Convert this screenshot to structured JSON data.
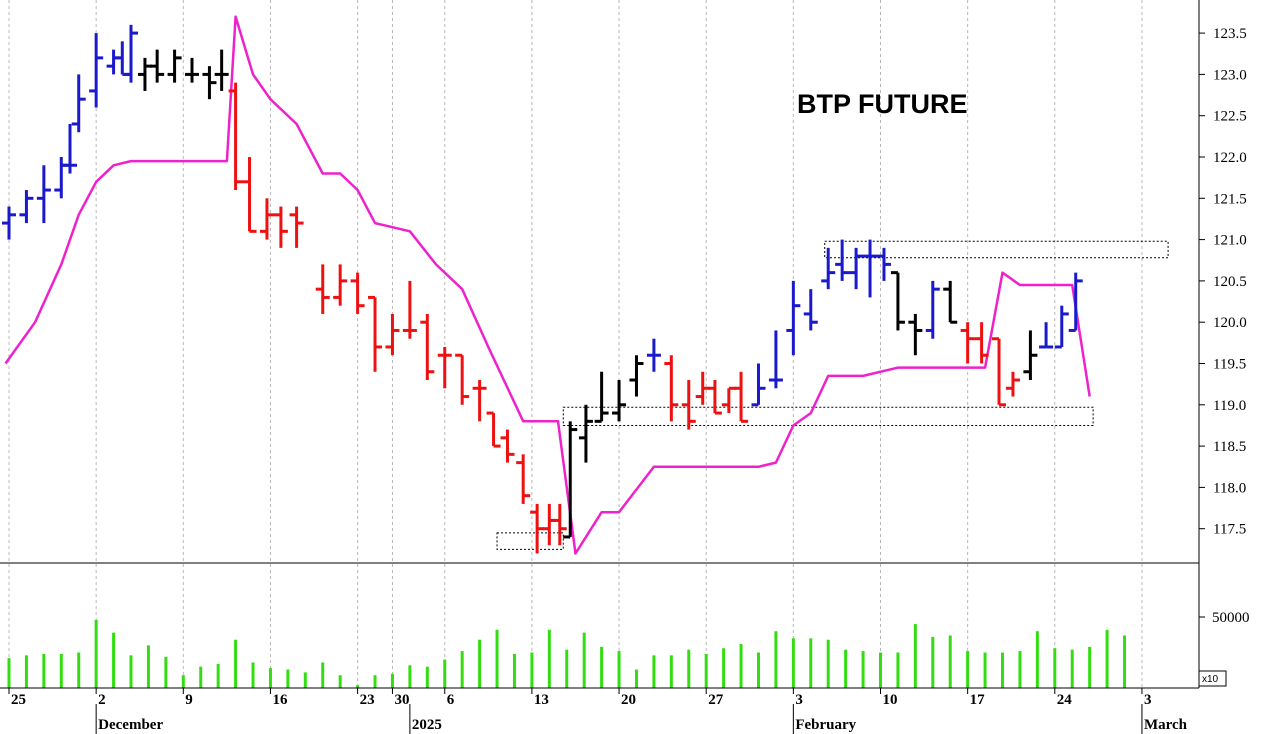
{
  "chart_data": {
    "type": "ohlc",
    "title": "BTP FUTURE",
    "y_axis": {
      "side": "right",
      "ylim": [
        117.0,
        123.7
      ],
      "ticks": [
        "117.5",
        "118.0",
        "118.5",
        "119.0",
        "119.5",
        "120.0",
        "120.5",
        "121.0",
        "121.5",
        "122.0",
        "122.5",
        "123.0",
        "123.5"
      ]
    },
    "volume_axis": {
      "ylim": [
        0,
        62000
      ],
      "tick": "50000",
      "multiplier": "x10"
    },
    "x_axis": {
      "date_labels": [
        {
          "label": "25",
          "day": 0
        },
        {
          "label": "2",
          "day": 5
        },
        {
          "label": "9",
          "day": 10
        },
        {
          "label": "16",
          "day": 15
        },
        {
          "label": "23",
          "day": 20
        },
        {
          "label": "30",
          "day": 22
        },
        {
          "label": "6",
          "day": 25
        },
        {
          "label": "13",
          "day": 30
        },
        {
          "label": "20",
          "day": 35
        },
        {
          "label": "27",
          "day": 40
        },
        {
          "label": "3",
          "day": 45
        },
        {
          "label": "10",
          "day": 50
        },
        {
          "label": "17",
          "day": 55
        },
        {
          "label": "24",
          "day": 60
        },
        {
          "label": "3",
          "day": 65
        }
      ],
      "month_labels": [
        {
          "label": "December",
          "day": 5
        },
        {
          "label": "2025",
          "day": 23
        },
        {
          "label": "February",
          "day": 45
        },
        {
          "label": "March",
          "day": 65
        }
      ]
    },
    "colors": {
      "up": "#1a1acc",
      "down": "#ee1111",
      "neutral": "#000000",
      "supertrend": "#ee22cc",
      "volume": "#33dd11"
    },
    "bars": [
      {
        "x": 0,
        "o": 121.2,
        "h": 121.4,
        "l": 121.0,
        "c": 121.3,
        "color": "up"
      },
      {
        "x": 1,
        "o": 121.3,
        "h": 121.6,
        "l": 121.2,
        "c": 121.5,
        "color": "up"
      },
      {
        "x": 2,
        "o": 121.5,
        "h": 121.9,
        "l": 121.2,
        "c": 121.6,
        "color": "up"
      },
      {
        "x": 3,
        "o": 121.6,
        "h": 122.0,
        "l": 121.5,
        "c": 121.9,
        "color": "up"
      },
      {
        "x": 3.5,
        "o": 121.9,
        "h": 122.4,
        "l": 121.8,
        "c": 121.9,
        "color": "up"
      },
      {
        "x": 4,
        "o": 122.4,
        "h": 123.0,
        "l": 122.3,
        "c": 122.7,
        "color": "up"
      },
      {
        "x": 5,
        "o": 122.8,
        "h": 123.5,
        "l": 122.6,
        "c": 123.2,
        "color": "up"
      },
      {
        "x": 6,
        "o": 123.1,
        "h": 123.3,
        "l": 123.0,
        "c": 123.2,
        "color": "up"
      },
      {
        "x": 6.5,
        "o": 123.2,
        "h": 123.4,
        "l": 123.0,
        "c": 123.0,
        "color": "up"
      },
      {
        "x": 7,
        "o": 123.0,
        "h": 123.6,
        "l": 122.9,
        "c": 123.5,
        "color": "up"
      },
      {
        "x": 7.8,
        "o": 123.0,
        "h": 123.2,
        "l": 122.8,
        "c": 123.1,
        "color": "neutral"
      },
      {
        "x": 8.5,
        "o": 123.1,
        "h": 123.3,
        "l": 122.9,
        "c": 123.0,
        "color": "neutral"
      },
      {
        "x": 9.5,
        "o": 123.0,
        "h": 123.3,
        "l": 122.9,
        "c": 123.2,
        "color": "neutral"
      },
      {
        "x": 10.5,
        "o": 123.0,
        "h": 123.2,
        "l": 122.9,
        "c": 123.0,
        "color": "neutral"
      },
      {
        "x": 11.5,
        "o": 123.0,
        "h": 123.1,
        "l": 122.7,
        "c": 122.9,
        "color": "neutral"
      },
      {
        "x": 12.2,
        "o": 123.0,
        "h": 123.3,
        "l": 122.8,
        "c": 123.0,
        "color": "neutral"
      },
      {
        "x": 13,
        "o": 122.8,
        "h": 122.9,
        "l": 121.6,
        "c": 121.7,
        "color": "down"
      },
      {
        "x": 13.8,
        "o": 121.7,
        "h": 122.0,
        "l": 121.1,
        "c": 121.1,
        "color": "down"
      },
      {
        "x": 14.8,
        "o": 121.1,
        "h": 121.5,
        "l": 121.0,
        "c": 121.3,
        "color": "down"
      },
      {
        "x": 15.6,
        "o": 121.3,
        "h": 121.4,
        "l": 120.9,
        "c": 121.1,
        "color": "down"
      },
      {
        "x": 16.5,
        "o": 121.3,
        "h": 121.4,
        "l": 120.9,
        "c": 121.2,
        "color": "down"
      },
      {
        "x": 18,
        "o": 120.4,
        "h": 120.7,
        "l": 120.1,
        "c": 120.3,
        "color": "down"
      },
      {
        "x": 19,
        "o": 120.3,
        "h": 120.7,
        "l": 120.2,
        "c": 120.5,
        "color": "down"
      },
      {
        "x": 20,
        "o": 120.5,
        "h": 120.6,
        "l": 120.1,
        "c": 120.2,
        "color": "down"
      },
      {
        "x": 21,
        "o": 120.3,
        "h": 120.3,
        "l": 119.4,
        "c": 119.7,
        "color": "down"
      },
      {
        "x": 22,
        "o": 119.7,
        "h": 120.1,
        "l": 119.6,
        "c": 119.9,
        "color": "down"
      },
      {
        "x": 23,
        "o": 119.9,
        "h": 120.5,
        "l": 119.8,
        "c": 119.9,
        "color": "down"
      },
      {
        "x": 24,
        "o": 120.0,
        "h": 120.1,
        "l": 119.3,
        "c": 119.4,
        "color": "down"
      },
      {
        "x": 25,
        "o": 119.6,
        "h": 119.7,
        "l": 119.2,
        "c": 119.6,
        "color": "down"
      },
      {
        "x": 26,
        "o": 119.6,
        "h": 119.6,
        "l": 119.0,
        "c": 119.1,
        "color": "down"
      },
      {
        "x": 27,
        "o": 119.2,
        "h": 119.3,
        "l": 118.8,
        "c": 119.2,
        "color": "down"
      },
      {
        "x": 27.8,
        "o": 118.9,
        "h": 118.9,
        "l": 118.5,
        "c": 118.5,
        "color": "down"
      },
      {
        "x": 28.6,
        "o": 118.6,
        "h": 118.7,
        "l": 118.3,
        "c": 118.4,
        "color": "down"
      },
      {
        "x": 29.5,
        "o": 118.3,
        "h": 118.4,
        "l": 117.8,
        "c": 117.9,
        "color": "down"
      },
      {
        "x": 30.3,
        "o": 117.7,
        "h": 117.8,
        "l": 117.2,
        "c": 117.5,
        "color": "down"
      },
      {
        "x": 31,
        "o": 117.5,
        "h": 117.8,
        "l": 117.3,
        "c": 117.6,
        "color": "down"
      },
      {
        "x": 31.6,
        "o": 117.6,
        "h": 117.8,
        "l": 117.3,
        "c": 117.5,
        "color": "down"
      },
      {
        "x": 32.2,
        "o": 117.4,
        "h": 118.8,
        "l": 117.4,
        "c": 118.7,
        "color": "neutral"
      },
      {
        "x": 33.1,
        "o": 118.6,
        "h": 119.0,
        "l": 118.3,
        "c": 118.8,
        "color": "neutral"
      },
      {
        "x": 34,
        "o": 118.8,
        "h": 119.4,
        "l": 118.8,
        "c": 118.9,
        "color": "neutral"
      },
      {
        "x": 35,
        "o": 118.9,
        "h": 119.3,
        "l": 118.8,
        "c": 119.0,
        "color": "neutral"
      },
      {
        "x": 36,
        "o": 119.3,
        "h": 119.6,
        "l": 119.1,
        "c": 119.5,
        "color": "neutral"
      },
      {
        "x": 37,
        "o": 119.6,
        "h": 119.8,
        "l": 119.4,
        "c": 119.6,
        "color": "up"
      },
      {
        "x": 38,
        "o": 119.5,
        "h": 119.6,
        "l": 118.8,
        "c": 119.0,
        "color": "down"
      },
      {
        "x": 39,
        "o": 119.0,
        "h": 119.3,
        "l": 118.7,
        "c": 118.8,
        "color": "down"
      },
      {
        "x": 39.8,
        "o": 119.1,
        "h": 119.4,
        "l": 119.0,
        "c": 119.2,
        "color": "down"
      },
      {
        "x": 40.5,
        "o": 119.2,
        "h": 119.3,
        "l": 118.9,
        "c": 118.9,
        "color": "down"
      },
      {
        "x": 41.3,
        "o": 119.0,
        "h": 119.2,
        "l": 118.9,
        "c": 119.2,
        "color": "down"
      },
      {
        "x": 42,
        "o": 119.2,
        "h": 119.4,
        "l": 118.8,
        "c": 118.8,
        "color": "down"
      },
      {
        "x": 43,
        "o": 119.0,
        "h": 119.5,
        "l": 119.0,
        "c": 119.2,
        "color": "up"
      },
      {
        "x": 44,
        "o": 119.3,
        "h": 119.9,
        "l": 119.2,
        "c": 119.3,
        "color": "up"
      },
      {
        "x": 45,
        "o": 119.9,
        "h": 120.5,
        "l": 119.6,
        "c": 120.2,
        "color": "up"
      },
      {
        "x": 46,
        "o": 120.1,
        "h": 120.4,
        "l": 119.9,
        "c": 120.0,
        "color": "up"
      },
      {
        "x": 47,
        "o": 120.5,
        "h": 120.9,
        "l": 120.4,
        "c": 120.6,
        "color": "up"
      },
      {
        "x": 47.8,
        "o": 120.7,
        "h": 121.0,
        "l": 120.5,
        "c": 120.6,
        "color": "up"
      },
      {
        "x": 48.6,
        "o": 120.6,
        "h": 120.9,
        "l": 120.4,
        "c": 120.8,
        "color": "up"
      },
      {
        "x": 49.4,
        "o": 120.8,
        "h": 121.0,
        "l": 120.3,
        "c": 120.8,
        "color": "up"
      },
      {
        "x": 50.2,
        "o": 120.8,
        "h": 120.9,
        "l": 120.5,
        "c": 120.7,
        "color": "up"
      },
      {
        "x": 51,
        "o": 120.6,
        "h": 120.6,
        "l": 119.9,
        "c": 120.0,
        "color": "neutral"
      },
      {
        "x": 52,
        "o": 120.0,
        "h": 120.1,
        "l": 119.6,
        "c": 119.9,
        "color": "neutral"
      },
      {
        "x": 53,
        "o": 119.9,
        "h": 120.5,
        "l": 119.8,
        "c": 120.4,
        "color": "up"
      },
      {
        "x": 54,
        "o": 120.4,
        "h": 120.5,
        "l": 120.0,
        "c": 120.0,
        "color": "neutral"
      },
      {
        "x": 55,
        "o": 119.9,
        "h": 120.0,
        "l": 119.5,
        "c": 119.8,
        "color": "down"
      },
      {
        "x": 55.8,
        "o": 119.8,
        "h": 120.0,
        "l": 119.5,
        "c": 119.6,
        "color": "down"
      },
      {
        "x": 56.8,
        "o": 119.8,
        "h": 119.8,
        "l": 119.0,
        "c": 119.0,
        "color": "down"
      },
      {
        "x": 57.6,
        "o": 119.2,
        "h": 119.4,
        "l": 119.1,
        "c": 119.3,
        "color": "down"
      },
      {
        "x": 58.6,
        "o": 119.4,
        "h": 119.9,
        "l": 119.3,
        "c": 119.6,
        "color": "neutral"
      },
      {
        "x": 59.5,
        "o": 119.7,
        "h": 120.0,
        "l": 119.7,
        "c": 119.7,
        "color": "up"
      },
      {
        "x": 60.4,
        "o": 119.7,
        "h": 120.2,
        "l": 119.7,
        "c": 120.1,
        "color": "up"
      },
      {
        "x": 61.2,
        "o": 119.9,
        "h": 120.6,
        "l": 119.9,
        "c": 120.5,
        "color": "up"
      }
    ],
    "supertrend": [
      {
        "x": -0.2,
        "y": 119.5
      },
      {
        "x": 1.5,
        "y": 120.0
      },
      {
        "x": 3,
        "y": 120.7
      },
      {
        "x": 4,
        "y": 121.3
      },
      {
        "x": 5,
        "y": 121.7
      },
      {
        "x": 6,
        "y": 121.9
      },
      {
        "x": 7,
        "y": 121.95
      },
      {
        "x": 9,
        "y": 121.95
      },
      {
        "x": 12.5,
        "y": 121.95
      },
      {
        "x": 13,
        "y": 123.7
      },
      {
        "x": 14,
        "y": 123.0
      },
      {
        "x": 15,
        "y": 122.7
      },
      {
        "x": 16.5,
        "y": 122.4
      },
      {
        "x": 18,
        "y": 121.8
      },
      {
        "x": 19,
        "y": 121.8
      },
      {
        "x": 20,
        "y": 121.6
      },
      {
        "x": 21,
        "y": 121.2
      },
      {
        "x": 22,
        "y": 121.15
      },
      {
        "x": 23,
        "y": 121.1
      },
      {
        "x": 24.5,
        "y": 120.7
      },
      {
        "x": 26,
        "y": 120.4
      },
      {
        "x": 27.5,
        "y": 119.7
      },
      {
        "x": 29.5,
        "y": 118.8
      },
      {
        "x": 31.5,
        "y": 118.8
      },
      {
        "x": 32.5,
        "y": 117.2
      },
      {
        "x": 34,
        "y": 117.7
      },
      {
        "x": 35,
        "y": 117.7
      },
      {
        "x": 37,
        "y": 118.25
      },
      {
        "x": 43,
        "y": 118.25
      },
      {
        "x": 44,
        "y": 118.3
      },
      {
        "x": 45,
        "y": 118.75
      },
      {
        "x": 46,
        "y": 118.9
      },
      {
        "x": 47,
        "y": 119.35
      },
      {
        "x": 49,
        "y": 119.35
      },
      {
        "x": 51,
        "y": 119.45
      },
      {
        "x": 56,
        "y": 119.45
      },
      {
        "x": 57,
        "y": 120.6
      },
      {
        "x": 58,
        "y": 120.45
      },
      {
        "x": 61,
        "y": 120.45
      },
      {
        "x": 62,
        "y": 119.1
      }
    ],
    "volume": [
      {
        "x": 0,
        "v": 21000
      },
      {
        "x": 1,
        "v": 23000
      },
      {
        "x": 2,
        "v": 24000
      },
      {
        "x": 3,
        "v": 24000
      },
      {
        "x": 4,
        "v": 25000
      },
      {
        "x": 5,
        "v": 48000
      },
      {
        "x": 6,
        "v": 39000
      },
      {
        "x": 7,
        "v": 23000
      },
      {
        "x": 8,
        "v": 30000
      },
      {
        "x": 9,
        "v": 22000
      },
      {
        "x": 10,
        "v": 9000
      },
      {
        "x": 11,
        "v": 15000
      },
      {
        "x": 12,
        "v": 17000
      },
      {
        "x": 13,
        "v": 34000
      },
      {
        "x": 14,
        "v": 18000
      },
      {
        "x": 15,
        "v": 14000
      },
      {
        "x": 16,
        "v": 13000
      },
      {
        "x": 17,
        "v": 11000
      },
      {
        "x": 18,
        "v": 18000
      },
      {
        "x": 19,
        "v": 9000
      },
      {
        "x": 20,
        "v": 2000
      },
      {
        "x": 21,
        "v": 9000
      },
      {
        "x": 22,
        "v": 10000
      },
      {
        "x": 23,
        "v": 16000
      },
      {
        "x": 24,
        "v": 15000
      },
      {
        "x": 25,
        "v": 20000
      },
      {
        "x": 26,
        "v": 26000
      },
      {
        "x": 27,
        "v": 34000
      },
      {
        "x": 28,
        "v": 41000
      },
      {
        "x": 29,
        "v": 24000
      },
      {
        "x": 30,
        "v": 25000
      },
      {
        "x": 31,
        "v": 41000
      },
      {
        "x": 32,
        "v": 27000
      },
      {
        "x": 33,
        "v": 39000
      },
      {
        "x": 34,
        "v": 29000
      },
      {
        "x": 35,
        "v": 26000
      },
      {
        "x": 36,
        "v": 13000
      },
      {
        "x": 37,
        "v": 23000
      },
      {
        "x": 38,
        "v": 23000
      },
      {
        "x": 39,
        "v": 27000
      },
      {
        "x": 40,
        "v": 24000
      },
      {
        "x": 41,
        "v": 28000
      },
      {
        "x": 42,
        "v": 31000
      },
      {
        "x": 43,
        "v": 25000
      },
      {
        "x": 44,
        "v": 40000
      },
      {
        "x": 45,
        "v": 35000
      },
      {
        "x": 46,
        "v": 35000
      },
      {
        "x": 47,
        "v": 34000
      },
      {
        "x": 48,
        "v": 27000
      },
      {
        "x": 49,
        "v": 26000
      },
      {
        "x": 50,
        "v": 25000
      },
      {
        "x": 51,
        "v": 25000
      },
      {
        "x": 52,
        "v": 45000
      },
      {
        "x": 53,
        "v": 36000
      },
      {
        "x": 54,
        "v": 37000
      },
      {
        "x": 55,
        "v": 26000
      },
      {
        "x": 56,
        "v": 25000
      },
      {
        "x": 57,
        "v": 25000
      },
      {
        "x": 58,
        "v": 26000
      },
      {
        "x": 59,
        "v": 40000
      },
      {
        "x": 60,
        "v": 28000
      },
      {
        "x": 61,
        "v": 27000
      },
      {
        "x": 62,
        "v": 29000
      },
      {
        "x": 63,
        "v": 41000
      },
      {
        "x": 64,
        "v": 37000
      }
    ],
    "reference_boxes": [
      {
        "x0": 28,
        "x1": 31.8,
        "y0": 117.25,
        "y1": 117.45
      },
      {
        "x0": 31.8,
        "x1": 62.2,
        "y0": 118.75,
        "y1": 118.97
      },
      {
        "x0": 46.8,
        "x1": 66.5,
        "y0": 120.78,
        "y1": 120.98
      }
    ]
  }
}
